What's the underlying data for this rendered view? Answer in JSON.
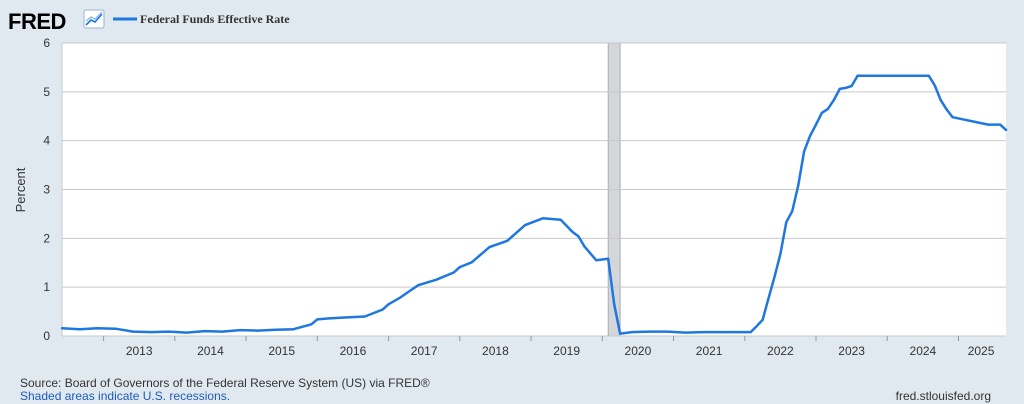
{
  "logo": {
    "text": "FRED"
  },
  "legend": {
    "label": "Federal Funds Effective Rate"
  },
  "footer": {
    "source": "Source: Board of Governors of the Federal Reserve System (US) via FRED®",
    "recession_note": "Shaded areas indicate U.S. recessions.",
    "site": "fred.stlouisfed.org"
  },
  "colors": {
    "background": "#e1e9f0",
    "plot_background": "#ffffff",
    "line": "#1f77e0",
    "grid": "#c9c9c9",
    "recession": "#d4d6da"
  },
  "chart_data": {
    "type": "line",
    "ylabel": "Percent",
    "xlabel": "",
    "ylim": [
      0,
      6
    ],
    "xlim": [
      "2012-06",
      "2025-09"
    ],
    "yticks": [
      "0",
      "1",
      "2",
      "3",
      "4",
      "5",
      "6"
    ],
    "xticks": [
      "2013",
      "2014",
      "2015",
      "2016",
      "2017",
      "2018",
      "2019",
      "2020",
      "2021",
      "2022",
      "2023",
      "2024",
      "2025"
    ],
    "grid": true,
    "legend_position": "top-left",
    "recessions": [
      {
        "start": "2020-02",
        "end": "2020-04"
      }
    ],
    "series": [
      {
        "name": "Federal Funds Effective Rate",
        "x": [
          "2012-06",
          "2012-09",
          "2012-12",
          "2013-03",
          "2013-06",
          "2013-09",
          "2013-12",
          "2014-03",
          "2014-06",
          "2014-09",
          "2014-12",
          "2015-03",
          "2015-06",
          "2015-09",
          "2015-12",
          "2016-01",
          "2016-03",
          "2016-06",
          "2016-09",
          "2016-12",
          "2017-01",
          "2017-03",
          "2017-06",
          "2017-09",
          "2017-12",
          "2018-01",
          "2018-03",
          "2018-06",
          "2018-09",
          "2018-12",
          "2019-03",
          "2019-06",
          "2019-08",
          "2019-09",
          "2019-10",
          "2019-12",
          "2020-02",
          "2020-03",
          "2020-04",
          "2020-06",
          "2020-09",
          "2020-12",
          "2021-03",
          "2021-06",
          "2021-09",
          "2021-12",
          "2022-02",
          "2022-03",
          "2022-04",
          "2022-05",
          "2022-06",
          "2022-07",
          "2022-08",
          "2022-09",
          "2022-10",
          "2022-11",
          "2022-12",
          "2023-01",
          "2023-02",
          "2023-03",
          "2023-04",
          "2023-05",
          "2023-06",
          "2023-07",
          "2023-08",
          "2024-06",
          "2024-08",
          "2024-09",
          "2024-10",
          "2024-11",
          "2024-12",
          "2025-06",
          "2025-08",
          "2025-09"
        ],
        "y": [
          0.16,
          0.14,
          0.16,
          0.15,
          0.09,
          0.08,
          0.09,
          0.07,
          0.1,
          0.09,
          0.12,
          0.11,
          0.13,
          0.14,
          0.24,
          0.34,
          0.36,
          0.38,
          0.4,
          0.54,
          0.65,
          0.79,
          1.04,
          1.15,
          1.3,
          1.41,
          1.51,
          1.82,
          1.95,
          2.27,
          2.41,
          2.38,
          2.13,
          2.04,
          1.83,
          1.55,
          1.58,
          0.65,
          0.05,
          0.08,
          0.09,
          0.09,
          0.07,
          0.08,
          0.08,
          0.08,
          0.08,
          0.2,
          0.33,
          0.77,
          1.21,
          1.68,
          2.33,
          2.56,
          3.08,
          3.78,
          4.1,
          4.33,
          4.57,
          4.65,
          4.83,
          5.06,
          5.08,
          5.12,
          5.33,
          5.33,
          5.33,
          5.13,
          4.83,
          4.64,
          4.48,
          4.33,
          4.33,
          4.22
        ]
      }
    ]
  }
}
